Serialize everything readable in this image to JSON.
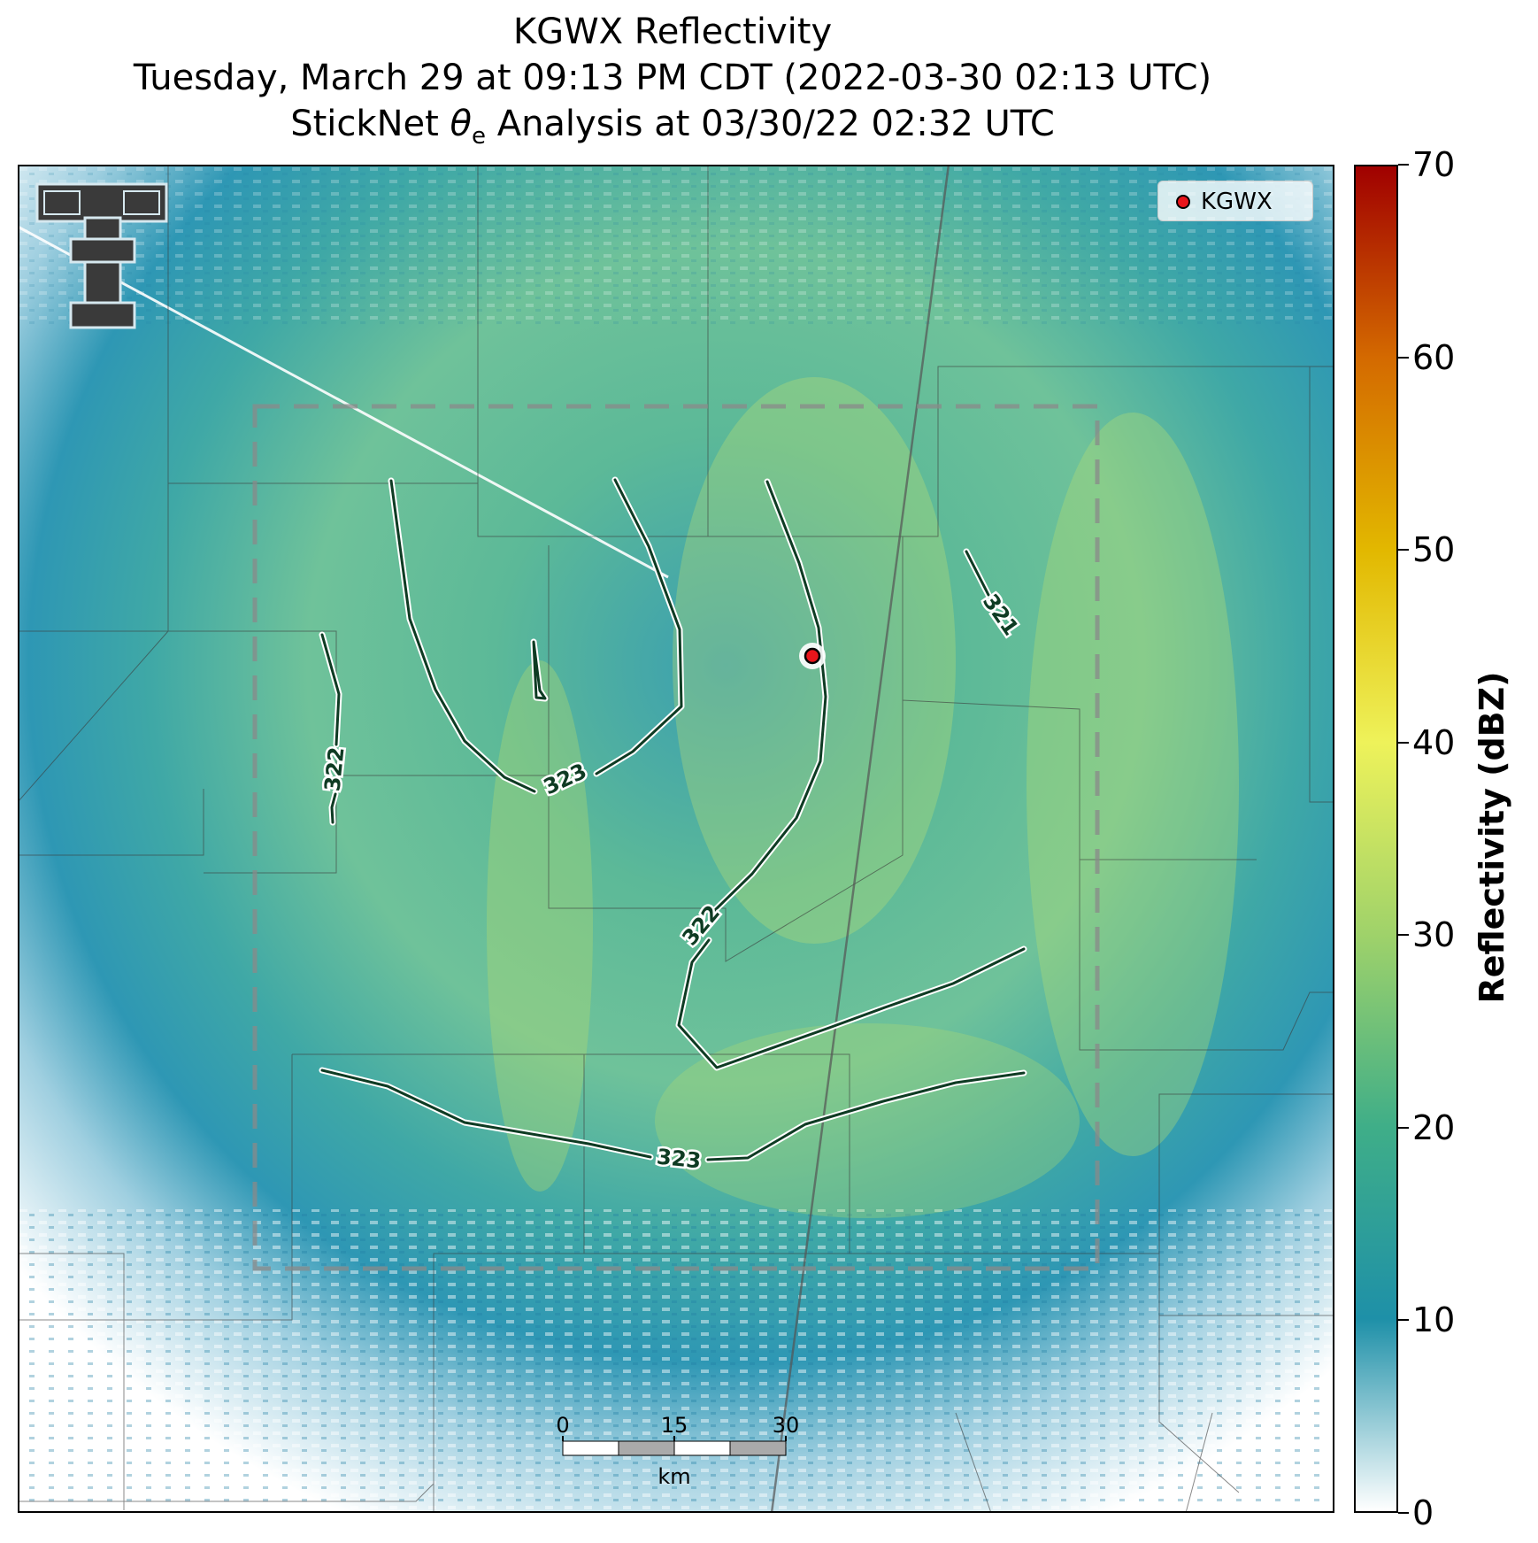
{
  "title": {
    "line1": "KGWX Reflectivity",
    "line2": "Tuesday, March 29 at 09:13 PM CDT (2022-03-30 02:13 UTC)",
    "line3_prefix": "StickNet ",
    "line3_symbol": "θ",
    "line3_subscript": "e",
    "line3_suffix": " Analysis at 03/30/22 02:32 UTC"
  },
  "legend": {
    "label": "KGWX",
    "marker_color": "#e8151b"
  },
  "colorbar": {
    "label": "Reflectivity (dBZ)",
    "ticks": [
      "0",
      "10",
      "20",
      "30",
      "40",
      "50",
      "60",
      "70"
    ],
    "min": 0,
    "max": 70,
    "colors": [
      "#ffffff",
      "#1e90a8",
      "#3fae88",
      "#9fd26a",
      "#eef25a",
      "#e2b800",
      "#d46a00",
      "#a00000"
    ]
  },
  "contours": {
    "labels": [
      "322",
      "323",
      "322",
      "321",
      "323"
    ],
    "color": "#0e3b23"
  },
  "scalebar": {
    "ticks": [
      "0",
      "15",
      "30"
    ],
    "unit": "km"
  },
  "logo": {
    "icon": "texas-tech-double-t-logo"
  },
  "colors": {
    "radar_base": "#2f9bad",
    "radar_light": "#7cc89e",
    "analysis_box": "#7a7a7a"
  }
}
